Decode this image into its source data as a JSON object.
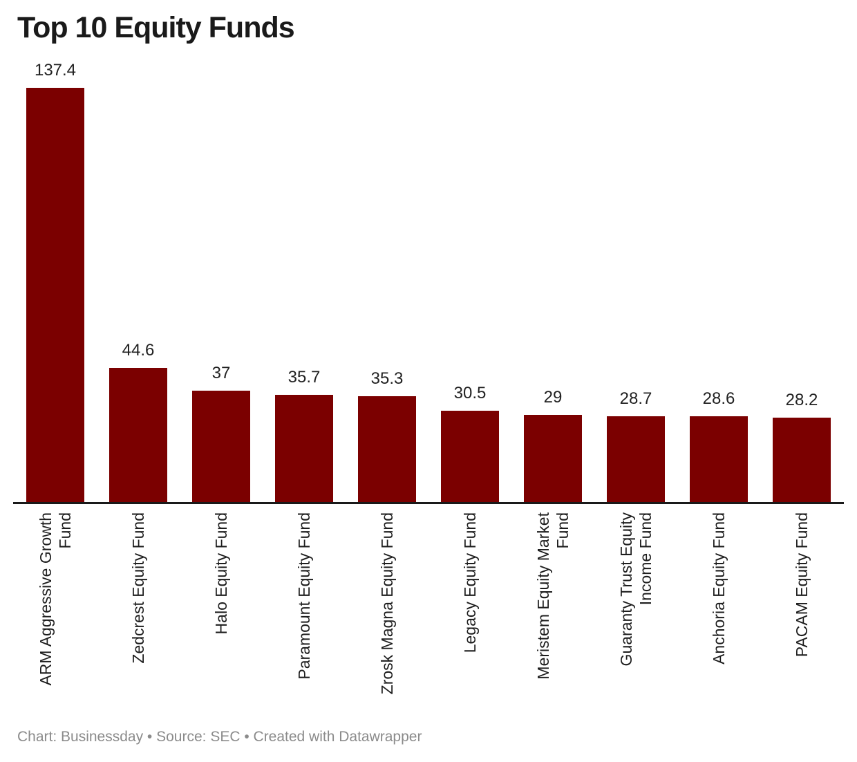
{
  "title": "Top 10 Equity Funds",
  "footer": {
    "text": "Chart: Businessday • Source: SEC • Created with Datawrapper"
  },
  "colors": {
    "bar": "#7b0000",
    "axis": "#1a1a1a",
    "title_text": "#1a1a1a",
    "value_label_text": "#222222",
    "category_label_text": "#1d1d1d",
    "footer_text": "#8b8b8b",
    "background": "#ffffff"
  },
  "chart_data": {
    "type": "bar",
    "orientation": "vertical",
    "title": "Top 10 Equity Funds",
    "xlabel": "",
    "ylabel": "",
    "ylim": [
      0,
      137.4
    ],
    "grid": false,
    "legend": false,
    "y_axis_ticks_visible": false,
    "categories": [
      "ARM Aggressive Growth Fund",
      "Zedcrest Equity Fund",
      "Halo Equity Fund",
      "Paramount Equity Fund",
      "Zrosk Magna Equity Fund",
      "Legacy Equity Fund",
      "Meristem Equity Market Fund",
      "Guaranty Trust Equity Income Fund",
      "Anchoria Equity Fund",
      "PACAM Equity Fund"
    ],
    "category_label_lines": [
      [
        "ARM Aggressive Growth",
        "Fund"
      ],
      [
        "Zedcrest Equity Fund"
      ],
      [
        "Halo Equity Fund"
      ],
      [
        "Paramount Equity Fund"
      ],
      [
        "Zrosk Magna Equity Fund"
      ],
      [
        "Legacy Equity Fund"
      ],
      [
        "Meristem Equity Market",
        "Fund"
      ],
      [
        "Guaranty Trust Equity",
        "Income Fund"
      ],
      [
        "Anchoria Equity Fund"
      ],
      [
        "PACAM Equity Fund"
      ]
    ],
    "values": [
      137.4,
      44.6,
      37,
      35.7,
      35.3,
      30.5,
      29,
      28.7,
      28.6,
      28.2
    ],
    "value_labels": [
      "137.4",
      "44.6",
      "37",
      "35.7",
      "35.3",
      "30.5",
      "29",
      "28.7",
      "28.6",
      "28.2"
    ],
    "bar_color": "#7b0000"
  }
}
